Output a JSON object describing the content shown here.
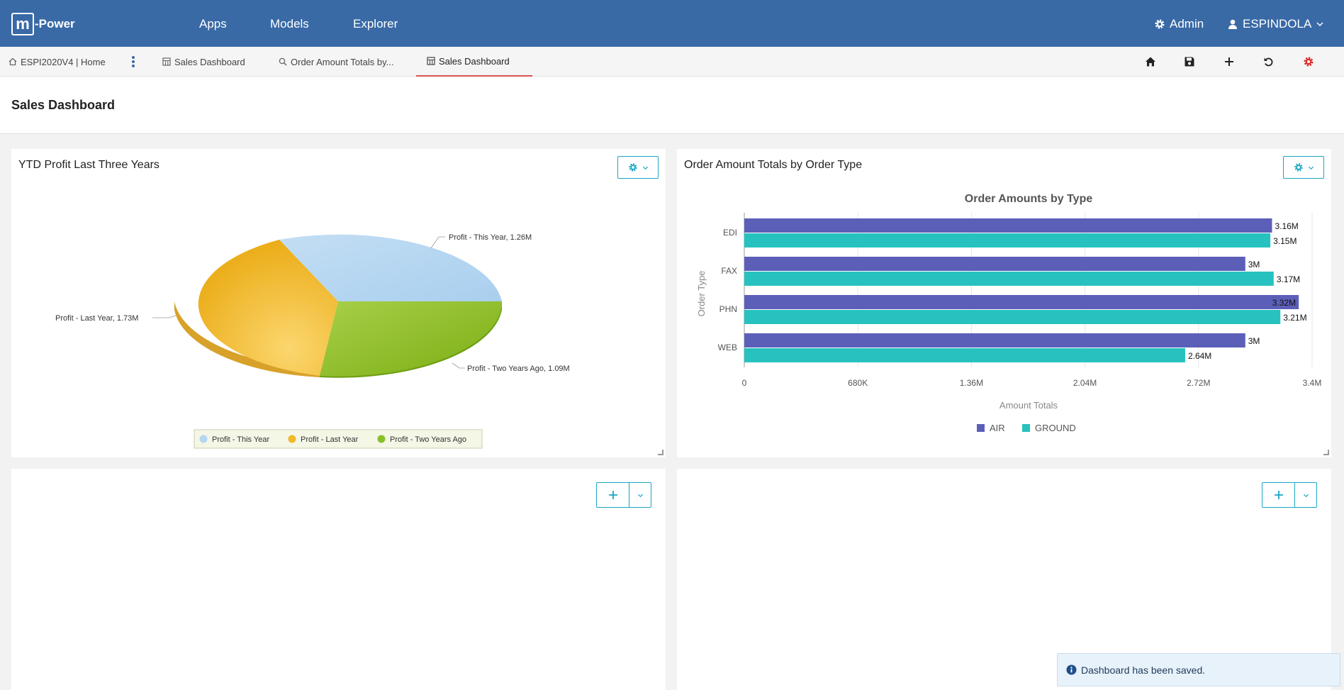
{
  "app": {
    "logo_mark": "m",
    "logo_text": "-Power"
  },
  "topnav": {
    "links": [
      "Apps",
      "Models",
      "Explorer"
    ],
    "admin_label": "Admin",
    "user_label": "ESPINDOLA"
  },
  "tabs": {
    "home": "ESPI2020V4 | Home",
    "items": [
      "Sales Dashboard",
      "Order Amount Totals by...",
      "Sales Dashboard"
    ]
  },
  "page": {
    "title": "Sales Dashboard"
  },
  "pie_panel": {
    "title": "YTD Profit Last Three Years",
    "labels": [
      "Profit - This Year, 1.26M",
      "Profit - Last Year, 1.73M",
      "Profit - Two Years Ago, 1.09M"
    ],
    "legend": [
      "Profit - This Year",
      "Profit - Last Year",
      "Profit - Two Years Ago"
    ]
  },
  "bar_panel": {
    "title": "Order Amount Totals by Order Type"
  },
  "chart_data": [
    {
      "type": "pie",
      "title": "",
      "categories": [
        "Profit - This Year",
        "Profit - Last Year",
        "Profit - Two Years Ago"
      ],
      "values": [
        1.26,
        1.73,
        1.09
      ],
      "unit": "M",
      "colors": [
        "#b5d6f0",
        "#f0b929",
        "#8bbf2a"
      ],
      "legend": "bottom"
    },
    {
      "type": "bar",
      "orientation": "horizontal",
      "title": "Order Amounts by Type",
      "xlabel": "Amount Totals",
      "ylabel": "Order Type",
      "categories": [
        "EDI",
        "FAX",
        "PHN",
        "WEB"
      ],
      "series": [
        {
          "name": "AIR",
          "values": [
            3.16,
            3.0,
            3.32,
            3.0
          ],
          "labels": [
            "3.16M",
            "3M",
            "3.32M",
            "3M"
          ],
          "color": "#5c5fb8"
        },
        {
          "name": "GROUND",
          "values": [
            3.15,
            3.17,
            3.21,
            2.64
          ],
          "labels": [
            "3.15M",
            "3.17M",
            "3.21M",
            "2.64M"
          ],
          "color": "#27c2bf"
        }
      ],
      "xlim": [
        0,
        3.4
      ],
      "xticks": [
        "0",
        "680K",
        "1.36M",
        "2.04M",
        "2.72M",
        "3.4M"
      ],
      "legend": "bottom"
    }
  ],
  "toast": {
    "message": "Dashboard has been saved."
  }
}
